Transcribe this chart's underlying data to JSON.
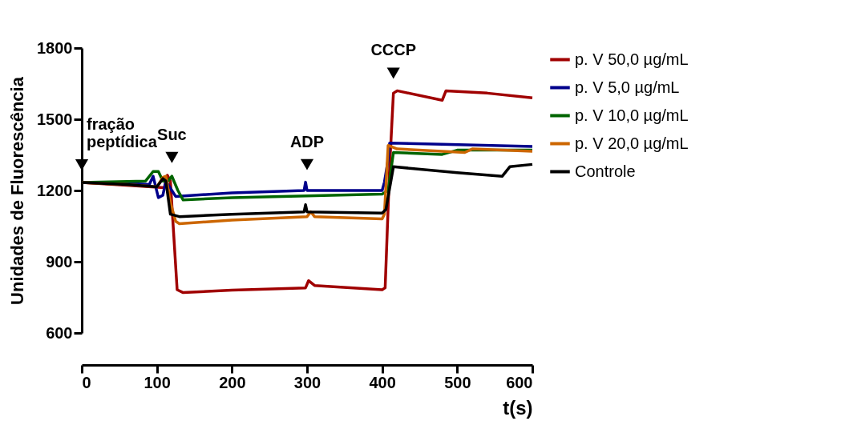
{
  "chart_data": {
    "type": "line",
    "xlabel": "t(s)",
    "ylabel": "Unidades de Fluorescência",
    "xlim": [
      0,
      600
    ],
    "ylim": [
      600,
      1800
    ],
    "xticks": [
      0,
      100,
      200,
      300,
      400,
      500,
      600
    ],
    "yticks": [
      600,
      900,
      1200,
      1500,
      1800
    ],
    "grid": false,
    "legend": "top right",
    "marker": "none",
    "line_style": "solid",
    "series": [
      {
        "name": "p. V 50,0 µg/mL",
        "color": "#a00000",
        "x": [
          0,
          60,
          110,
          114,
          118,
          127,
          135,
          200,
          298,
          302,
          310,
          400,
          404,
          410,
          415,
          420,
          480,
          485,
          540,
          600
        ],
        "values": [
          1234,
          1222,
          1212,
          1264,
          1240,
          782,
          770,
          780,
          790,
          820,
          800,
          782,
          790,
          1300,
          1610,
          1620,
          1580,
          1620,
          1610,
          1590
        ]
      },
      {
        "name": "p. V 5,0 µg/mL",
        "color": "#00008b",
        "x": [
          0,
          60,
          90,
          95,
          102,
          108,
          112,
          125,
          200,
          296,
          298,
          300,
          400,
          403,
          408,
          410,
          480,
          600
        ],
        "values": [
          1234,
          1230,
          1225,
          1260,
          1170,
          1180,
          1240,
          1175,
          1190,
          1200,
          1235,
          1200,
          1200,
          1235,
          1330,
          1400,
          1395,
          1385
        ]
      },
      {
        "name": "p. V 10,0 µg/mL",
        "color": "#006400",
        "x": [
          0,
          60,
          85,
          95,
          102,
          108,
          115,
          120,
          128,
          135,
          200,
          400,
          408,
          415,
          480,
          500,
          600
        ],
        "values": [
          1234,
          1238,
          1240,
          1280,
          1280,
          1240,
          1240,
          1260,
          1200,
          1160,
          1170,
          1185,
          1200,
          1360,
          1352,
          1370,
          1370
        ]
      },
      {
        "name": "p. V 20,0 µg/mL",
        "color": "#cc6600",
        "x": [
          0,
          60,
          100,
          108,
          112,
          118,
          125,
          130,
          200,
          300,
          305,
          310,
          400,
          403,
          408,
          420,
          510,
          520,
          600
        ],
        "values": [
          1234,
          1225,
          1215,
          1255,
          1260,
          1150,
          1070,
          1060,
          1075,
          1090,
          1110,
          1090,
          1080,
          1100,
          1390,
          1375,
          1360,
          1375,
          1365
        ]
      },
      {
        "name": "Controle",
        "color": "#000000",
        "x": [
          0,
          60,
          100,
          108,
          112,
          118,
          130,
          200,
          296,
          298,
          300,
          400,
          405,
          415,
          500,
          560,
          570,
          600
        ],
        "values": [
          1234,
          1225,
          1215,
          1250,
          1240,
          1100,
          1090,
          1100,
          1110,
          1140,
          1110,
          1105,
          1120,
          1300,
          1275,
          1260,
          1300,
          1310
        ]
      }
    ],
    "annotations": [
      {
        "text": "fração peptídica",
        "x": 0,
        "y": 1234
      },
      {
        "text": "Suc",
        "x": 120,
        "y": 1265
      },
      {
        "text": "ADP",
        "x": 300,
        "y": 1235
      },
      {
        "text": "CCCP",
        "x": 415,
        "y": 1620
      }
    ]
  }
}
